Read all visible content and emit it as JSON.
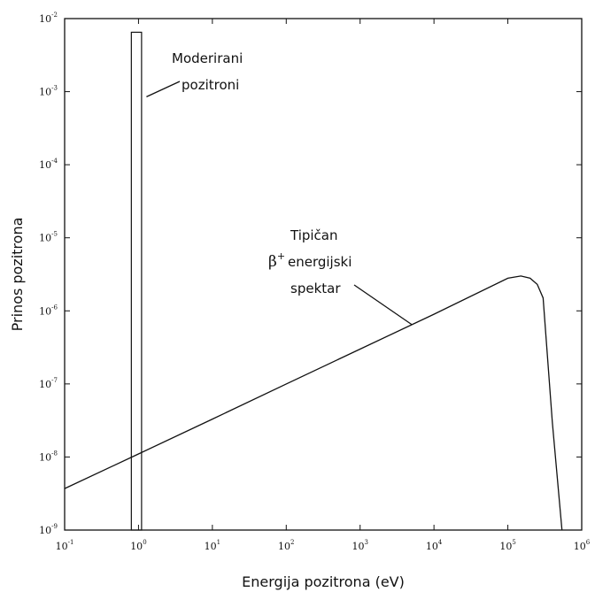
{
  "chart_data": {
    "type": "line",
    "xlabel": "Energija pozitrona (eV)",
    "ylabel": "Prinos pozitrona",
    "xscale": "log",
    "yscale": "log",
    "xlim": [
      0.1,
      1000000
    ],
    "ylim": [
      1e-09,
      0.01
    ],
    "x_tick_exponents": [
      -1,
      0,
      1,
      2,
      3,
      4,
      5,
      6
    ],
    "y_tick_exponents": [
      -9,
      -8,
      -7,
      -6,
      -5,
      -4,
      -3,
      -2
    ],
    "tick_base": "10",
    "grid": false,
    "series": [
      {
        "kind": "spectrum",
        "x": [
          0.1,
          1,
          10,
          100,
          1000,
          10000,
          100000,
          150000,
          200000,
          250000,
          300000,
          400000,
          540000
        ],
        "y": [
          3.7e-09,
          1.1e-08,
          3.3e-08,
          1e-07,
          3e-07,
          9e-07,
          2.8e-06,
          3e-06,
          2.8e-06,
          2.3e-06,
          1.5e-06,
          3e-08,
          1e-09
        ]
      },
      {
        "kind": "moderated-bar",
        "x_range": [
          0.8,
          1.1
        ],
        "y": 0.0065
      }
    ],
    "annotations": [
      {
        "id": "moderated",
        "lines": [
          "Moderirani",
          "pozitroni"
        ],
        "arrow_to": {
          "x": 1.0,
          "y": 0.0009
        }
      },
      {
        "id": "spectrum",
        "lines": [
          "Tipičan",
          "energijski",
          "spektar"
        ],
        "symbol": "β",
        "symbol_sup": "+",
        "arrow_to": {
          "x": 5000,
          "y": 6.5e-07
        }
      }
    ]
  }
}
